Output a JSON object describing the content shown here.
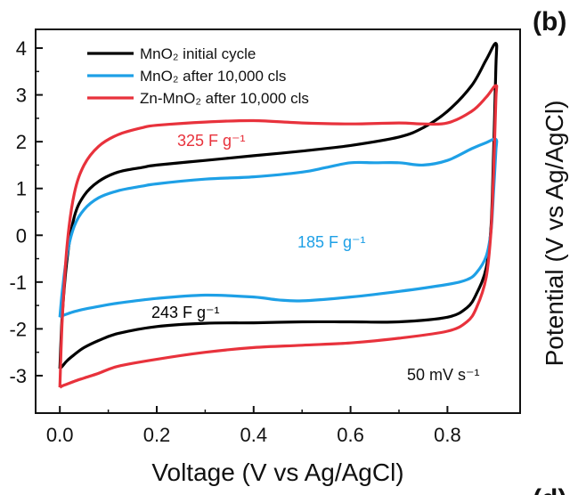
{
  "chart_data": {
    "type": "line",
    "panel_label": "(b)",
    "next_panel_label": "(d)",
    "title": "",
    "xlabel": "Voltage (V vs Ag/AgCl)",
    "ylabel": "",
    "right_ylabel": "Potential (V vs Ag/AgCl)",
    "xlim": [
      -0.05,
      0.95
    ],
    "ylim": [
      -3.8,
      4.4
    ],
    "xticks": [
      "0.0",
      "0.2",
      "0.4",
      "0.6",
      "0.8"
    ],
    "xtick_values": [
      0.0,
      0.2,
      0.4,
      0.6,
      0.8
    ],
    "yticks": [
      "-3",
      "-2",
      "-1",
      "0",
      "1",
      "2",
      "3",
      "4"
    ],
    "ytick_values": [
      -3,
      -2,
      -1,
      0,
      1,
      2,
      3,
      4
    ],
    "grid": false,
    "legend_position": "top-left",
    "scan_rate_label": "50 mV s⁻¹",
    "series": [
      {
        "name": "MnO₂ initial cycle",
        "color": "#000000",
        "annotation": "243 F g⁻¹",
        "annotation_color": "#000000",
        "x": [
          0.0,
          0.005,
          0.015,
          0.03,
          0.05,
          0.08,
          0.12,
          0.17,
          0.2,
          0.3,
          0.4,
          0.5,
          0.6,
          0.7,
          0.75,
          0.8,
          0.85,
          0.88,
          0.9,
          0.9,
          0.895,
          0.89,
          0.88,
          0.86,
          0.84,
          0.8,
          0.7,
          0.6,
          0.5,
          0.4,
          0.3,
          0.2,
          0.12,
          0.08,
          0.05,
          0.03,
          0.015,
          0.005,
          0.0
        ],
        "y": [
          -2.85,
          -1.7,
          -0.5,
          0.4,
          0.85,
          1.15,
          1.35,
          1.45,
          1.5,
          1.6,
          1.7,
          1.8,
          1.92,
          2.1,
          2.3,
          2.65,
          3.2,
          3.75,
          4.1,
          3.6,
          1.7,
          0.2,
          -0.7,
          -1.25,
          -1.55,
          -1.75,
          -1.85,
          -1.85,
          -1.85,
          -1.87,
          -1.88,
          -1.95,
          -2.1,
          -2.25,
          -2.4,
          -2.55,
          -2.68,
          -2.8,
          -2.85
        ]
      },
      {
        "name": "MnO₂ after 10,000 cls",
        "color": "#1ea0e6",
        "annotation": "185 F g⁻¹",
        "annotation_color": "#1ea0e6",
        "x": [
          0.0,
          0.005,
          0.015,
          0.03,
          0.05,
          0.08,
          0.12,
          0.17,
          0.2,
          0.3,
          0.4,
          0.5,
          0.55,
          0.6,
          0.65,
          0.7,
          0.75,
          0.8,
          0.85,
          0.88,
          0.9,
          0.9,
          0.895,
          0.89,
          0.88,
          0.86,
          0.84,
          0.8,
          0.7,
          0.6,
          0.5,
          0.45,
          0.4,
          0.3,
          0.2,
          0.12,
          0.08,
          0.05,
          0.03,
          0.015,
          0.005,
          0.0
        ],
        "y": [
          -1.75,
          -1.2,
          -0.4,
          0.2,
          0.55,
          0.8,
          0.95,
          1.05,
          1.1,
          1.2,
          1.25,
          1.35,
          1.45,
          1.55,
          1.55,
          1.55,
          1.5,
          1.6,
          1.85,
          1.98,
          2.05,
          1.8,
          0.9,
          0.1,
          -0.45,
          -0.8,
          -0.95,
          -1.05,
          -1.2,
          -1.32,
          -1.4,
          -1.38,
          -1.32,
          -1.28,
          -1.35,
          -1.45,
          -1.52,
          -1.58,
          -1.63,
          -1.68,
          -1.72,
          -1.75
        ]
      },
      {
        "name": "Zn-MnO₂ after 10,000 cls",
        "color": "#e8323c",
        "annotation": "325 F g⁻¹",
        "annotation_color": "#e8323c",
        "x": [
          0.0,
          0.005,
          0.015,
          0.03,
          0.05,
          0.08,
          0.12,
          0.17,
          0.2,
          0.3,
          0.4,
          0.5,
          0.6,
          0.7,
          0.75,
          0.8,
          0.85,
          0.88,
          0.9,
          0.9,
          0.895,
          0.89,
          0.88,
          0.86,
          0.84,
          0.8,
          0.7,
          0.6,
          0.5,
          0.4,
          0.3,
          0.2,
          0.12,
          0.08,
          0.05,
          0.03,
          0.015,
          0.005,
          0.0
        ],
        "y": [
          -3.25,
          -1.8,
          -0.2,
          0.9,
          1.5,
          1.9,
          2.15,
          2.3,
          2.35,
          2.42,
          2.45,
          2.4,
          2.38,
          2.4,
          2.38,
          2.4,
          2.65,
          2.95,
          3.2,
          2.9,
          1.3,
          0.1,
          -0.9,
          -1.55,
          -1.85,
          -2.05,
          -2.2,
          -2.3,
          -2.35,
          -2.4,
          -2.5,
          -2.65,
          -2.8,
          -2.95,
          -3.05,
          -3.12,
          -3.18,
          -3.22,
          -3.25
        ]
      }
    ]
  }
}
